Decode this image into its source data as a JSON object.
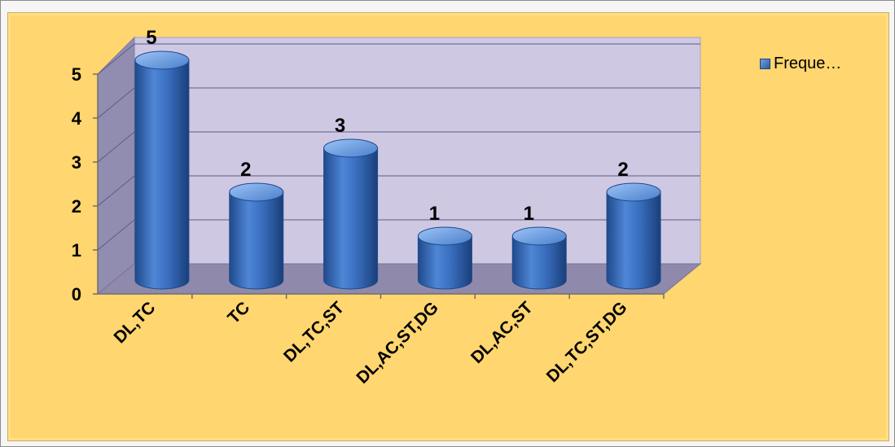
{
  "chart_data": {
    "type": "bar",
    "shape": "cylinder",
    "categories": [
      "DL,TC",
      "TC",
      "DL,TC,ST",
      "DL,AC,ST,DG",
      "DL,AC,ST",
      "DL,TC,ST,DG"
    ],
    "series": [
      {
        "name": "Freque…",
        "values": [
          5,
          2,
          3,
          1,
          1,
          2
        ]
      }
    ],
    "data_labels": [
      "5",
      "2",
      "3",
      "1",
      "1",
      "2"
    ],
    "yticks": [
      "0",
      "1",
      "2",
      "3",
      "4",
      "5"
    ],
    "ylim": [
      0,
      5
    ],
    "title": "",
    "xlabel": "",
    "ylabel": "",
    "grid": true,
    "legend_position": "top-right",
    "colors": {
      "bar": "#3a6fc0",
      "bar_dark": "#1f4a8c",
      "bar_light": "#8cb6f0",
      "wall": "#cec8e3",
      "side_wall": "#918db1",
      "floor": "#8f8aab",
      "chart_background": "#ffd66f"
    }
  }
}
